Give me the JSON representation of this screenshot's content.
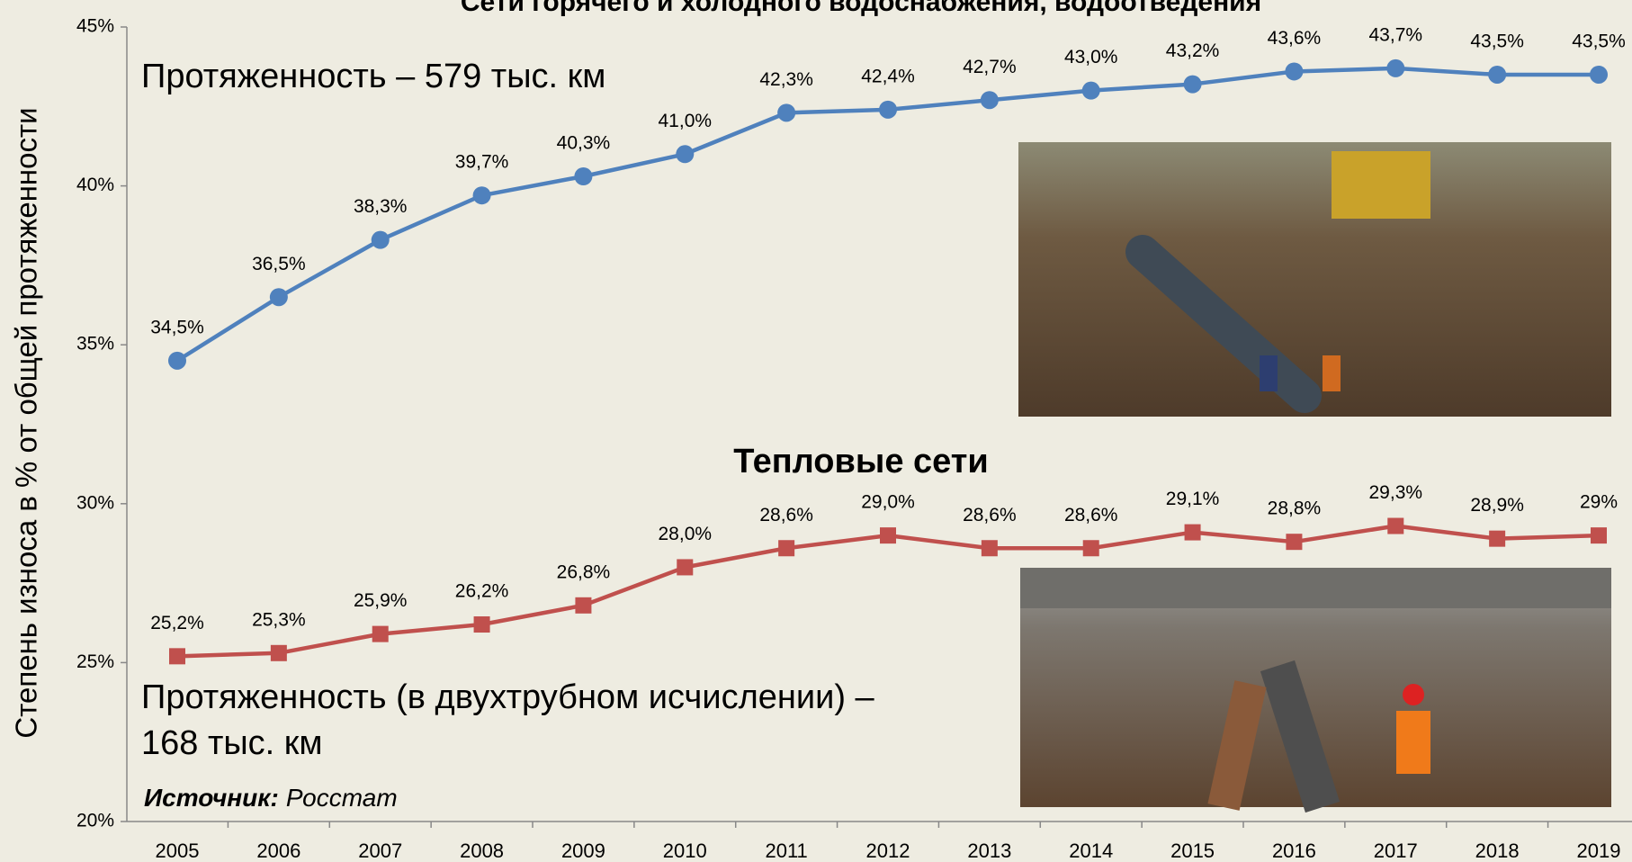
{
  "chart_data": {
    "type": "line",
    "categories": [
      "2005",
      "2006",
      "2007",
      "2008",
      "2009",
      "2010",
      "2011",
      "2012",
      "2013",
      "2014",
      "2015",
      "2016",
      "2017",
      "2018",
      "2019"
    ],
    "series": [
      {
        "name": "Сети горячего и холодного водоснабжения, водоотведения",
        "color": "#4f81bd",
        "marker": "circle",
        "values": [
          34.5,
          36.5,
          38.3,
          39.7,
          40.3,
          41.0,
          42.3,
          42.4,
          42.7,
          43.0,
          43.2,
          43.6,
          43.7,
          43.5,
          43.5
        ],
        "value_labels": [
          "34,5%",
          "36,5%",
          "38,3%",
          "39,7%",
          "40,3%",
          "41,0%",
          "42,3%",
          "42,4%",
          "42,7%",
          "43,0%",
          "43,2%",
          "43,6%",
          "43,7%",
          "43,5%",
          "43,5%"
        ]
      },
      {
        "name": "Тепловые сети",
        "color": "#c0504d",
        "marker": "square",
        "values": [
          25.2,
          25.3,
          25.9,
          26.2,
          26.8,
          28.0,
          28.6,
          29.0,
          28.6,
          28.6,
          29.1,
          28.8,
          29.3,
          28.9,
          29.0
        ],
        "value_labels": [
          "25,2%",
          "25,3%",
          "25,9%",
          "26,2%",
          "26,8%",
          "28,0%",
          "28,6%",
          "29,0%",
          "28,6%",
          "28,6%",
          "29,1%",
          "28,8%",
          "29,3%",
          "28,9%",
          "29%"
        ]
      }
    ],
    "y_label": "Степень износа в % от общей протяженности",
    "ylim": [
      20,
      45
    ],
    "yticks": [
      {
        "value": 20,
        "label": "20%"
      },
      {
        "value": 25,
        "label": "25%"
      },
      {
        "value": 30,
        "label": "30%"
      },
      {
        "value": 35,
        "label": "35%"
      },
      {
        "value": 40,
        "label": "40%"
      },
      {
        "value": 45,
        "label": "45%"
      }
    ],
    "annotations": [
      "Протяженность – 579 тыс. км",
      "Протяженность (в двухтрубном исчислении) –",
      "168 тыс. км"
    ],
    "source_label": "Источник:",
    "source": "Росстат"
  }
}
